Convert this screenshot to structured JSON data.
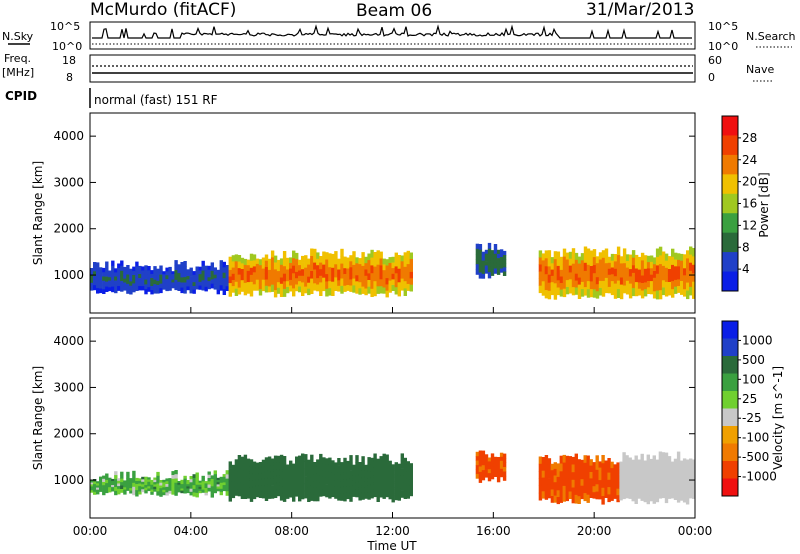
{
  "header": {
    "station": "McMurdo (fitACF)",
    "beam": "Beam 06",
    "date": "31/Mar/2013"
  },
  "noise_panel": {
    "left_label": "N.Sky",
    "right_label": "N.Search",
    "left_ticks": [
      "10^5",
      "10^0"
    ],
    "right_ticks": [
      "10^5",
      "10^0"
    ]
  },
  "freq_panel": {
    "left_label_line1": "Freq.",
    "left_label_line2": "[MHz]",
    "right_label": "Nave",
    "left_ticks": [
      "18",
      "8"
    ],
    "right_ticks": [
      "60",
      "0"
    ]
  },
  "cpid": {
    "label": "CPID",
    "mode": "normal (fast) 151 RF"
  },
  "colors": {
    "power_scale": [
      "#0a1ee6",
      "#2040c8",
      "#2a6a3a",
      "#3aa040",
      "#a0c820",
      "#f0c000",
      "#f07a00",
      "#f04000",
      "#f01010"
    ],
    "velocity_scale": [
      "#f01010",
      "#f04000",
      "#f07a00",
      "#f0a000",
      "#c8c8c8",
      "#70d030",
      "#3aa040",
      "#2a6a3a",
      "#2040c8",
      "#0a1ee6"
    ]
  },
  "chart_data": [
    {
      "type": "heatmap",
      "panel": "power",
      "ylabel": "Slant Range [km]",
      "colorbar_label": "Power [dB]",
      "colorbar_ticks": [
        "28",
        "24",
        "20",
        "16",
        "12",
        "8",
        "4"
      ],
      "colorbar_range": [
        0,
        30
      ],
      "ylim": [
        180,
        4500
      ],
      "yticks": [
        "4000",
        "3000",
        "2000",
        "1000"
      ],
      "ytick_values": [
        4000,
        3000,
        2000,
        1000
      ],
      "xlim": [
        0,
        24
      ],
      "echo_regions": [
        {
          "t_start": 0.0,
          "t_end": 5.5,
          "range_low": 650,
          "range_high": 1200,
          "power_db": 8
        },
        {
          "t_start": 5.5,
          "t_end": 12.8,
          "range_low": 600,
          "range_high": 1450,
          "power_db": 26
        },
        {
          "t_start": 15.3,
          "t_end": 16.5,
          "range_low": 1000,
          "range_high": 1600,
          "power_db": 10
        },
        {
          "t_start": 17.8,
          "t_end": 24.0,
          "range_low": 550,
          "range_high": 1500,
          "power_db": 26
        }
      ]
    },
    {
      "type": "heatmap",
      "panel": "velocity",
      "ylabel": "Slant Range [km]",
      "colorbar_label": "Velocity [m s^-1]",
      "colorbar_ticks": [
        "1000",
        "500",
        "100",
        "25",
        "-25",
        "-100",
        "-500",
        "-1000"
      ],
      "colorbar_range": [
        -1000,
        1000
      ],
      "ylim": [
        180,
        4500
      ],
      "yticks": [
        "4000",
        "3000",
        "2000",
        "1000"
      ],
      "ytick_values": [
        4000,
        3000,
        2000,
        1000
      ],
      "xlabel": "Time UT",
      "xticks": [
        "00:00",
        "04:00",
        "08:00",
        "12:00",
        "16:00",
        "20:00",
        "00:00"
      ],
      "xtick_values": [
        0,
        4,
        8,
        12,
        16,
        20,
        24
      ],
      "xlim": [
        0,
        24
      ],
      "echo_regions": [
        {
          "t_start": 0.0,
          "t_end": 5.5,
          "range_low": 700,
          "range_high": 1100,
          "velocity": 60
        },
        {
          "t_start": 5.5,
          "t_end": 12.8,
          "range_low": 600,
          "range_high": 1450,
          "velocity": 300
        },
        {
          "t_start": 15.3,
          "t_end": 16.5,
          "range_low": 1000,
          "range_high": 1600,
          "velocity": -150
        },
        {
          "t_start": 17.8,
          "t_end": 21.0,
          "range_low": 550,
          "range_high": 1450,
          "velocity": -150
        },
        {
          "t_start": 21.0,
          "t_end": 24.0,
          "range_low": 550,
          "range_high": 1500,
          "velocity": 0
        }
      ]
    }
  ]
}
